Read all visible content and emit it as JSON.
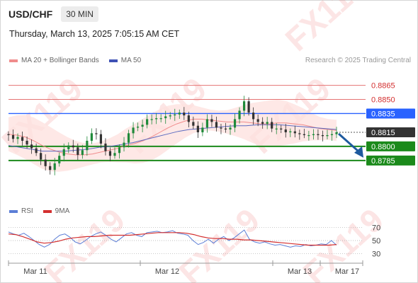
{
  "header": {
    "symbol": "USD/CHF",
    "timeframe": "30 MIN",
    "datetime": "Thursday, March 13, 2025 7:05:15 AM CET"
  },
  "legend": {
    "ma_bollinger": "MA 20 + Bollinger Bands",
    "ma50": "MA 50",
    "rsi": "RSI",
    "rsi_ma": "9MA"
  },
  "credit": "Research © 2025 Trading Central",
  "watermark": "FX119",
  "colors": {
    "resistance": "#e57373",
    "pivot": "#2962ff",
    "support": "#1b8a1b",
    "price": "#333333",
    "bull": "#1f8a3a",
    "bear": "#333333",
    "bollinger_fill": "#fde0de",
    "ma20": "#f08c8c",
    "ma50": "#5c6bc0",
    "rsi": "#5c7ed6",
    "rsi_ma": "#d32f2f",
    "arrow": "#1e5a9e"
  },
  "chart_data": [
    {
      "type": "candlestick",
      "name": "price",
      "levels": [
        {
          "value": 0.8865,
          "label": "0.8865",
          "kind": "resistance"
        },
        {
          "value": 0.885,
          "label": "0.8850",
          "kind": "resistance"
        },
        {
          "value": 0.8835,
          "label": "0.8835",
          "kind": "pivot"
        },
        {
          "value": 0.8815,
          "label": "0.8815",
          "kind": "price"
        },
        {
          "value": 0.88,
          "label": "0.8800",
          "kind": "support"
        },
        {
          "value": 0.8785,
          "label": "0.8785",
          "kind": "support"
        }
      ],
      "x_ticks": [
        "Mar 11",
        "Mar 12",
        "Mar 13",
        "Mar 17"
      ],
      "last_price": 0.8815,
      "ylim": [
        0.8745,
        0.8882
      ],
      "forecast_arrow": {
        "from": 0.8815,
        "to": 0.88
      },
      "close_path": [
        0.8812,
        0.8808,
        0.881,
        0.8806,
        0.8802,
        0.8798,
        0.8793,
        0.8786,
        0.8779,
        0.8775,
        0.8782,
        0.879,
        0.8797,
        0.8801,
        0.8799,
        0.8791,
        0.8796,
        0.8806,
        0.8814,
        0.8813,
        0.8803,
        0.8795,
        0.879,
        0.8793,
        0.8799,
        0.8804,
        0.8814,
        0.882,
        0.8821,
        0.8823,
        0.8829,
        0.8829,
        0.883,
        0.883,
        0.8832,
        0.8833,
        0.8834,
        0.8836,
        0.8833,
        0.8826,
        0.8822,
        0.8815,
        0.882,
        0.8829,
        0.8826,
        0.882,
        0.8819,
        0.8818,
        0.882,
        0.8829,
        0.8838,
        0.8848,
        0.8836,
        0.8829,
        0.8826,
        0.8824,
        0.8826,
        0.8819,
        0.8819,
        0.8818,
        0.8815,
        0.8816,
        0.8814,
        0.8813,
        0.8812,
        0.8812,
        0.8813,
        0.8812,
        0.8811,
        0.8812,
        0.8813,
        0.8815
      ],
      "ma20_path": [
        0.8813,
        0.8812,
        0.881,
        0.8806,
        0.8801,
        0.8797,
        0.8794,
        0.8792,
        0.8791,
        0.8791,
        0.8792,
        0.8794,
        0.8796,
        0.8798,
        0.8801,
        0.8803,
        0.8806,
        0.881,
        0.8815,
        0.882,
        0.8824,
        0.8827,
        0.8829,
        0.8829,
        0.8828,
        0.8827,
        0.8826,
        0.8826,
        0.8826,
        0.8825,
        0.8824,
        0.8824,
        0.8825,
        0.8825,
        0.8824,
        0.8823,
        0.8821,
        0.8819,
        0.8818,
        0.8817
      ],
      "ma50_path": [
        0.8801,
        0.8799,
        0.8797,
        0.8795,
        0.8795,
        0.8795,
        0.8796,
        0.8797,
        0.8799,
        0.88,
        0.8802,
        0.8804,
        0.8807,
        0.881,
        0.8813,
        0.8816,
        0.8818,
        0.8819,
        0.882,
        0.8821,
        0.8822,
        0.8822,
        0.8823,
        0.8823,
        0.8823,
        0.8822,
        0.8821,
        0.882,
        0.8819,
        0.8818
      ]
    },
    {
      "type": "line",
      "name": "rsi-panel",
      "y_ticks": [
        "70",
        "50",
        "30"
      ],
      "ylim": [
        20,
        80
      ],
      "rsi_path": [
        63,
        60,
        58,
        61,
        56,
        50,
        44,
        40,
        44,
        52,
        58,
        60,
        55,
        48,
        45,
        50,
        56,
        60,
        63,
        58,
        52,
        48,
        54,
        60,
        62,
        58,
        56,
        62,
        63,
        64,
        62,
        63,
        65,
        61,
        60,
        58,
        50,
        44,
        47,
        52,
        46,
        52,
        56,
        50,
        54,
        60,
        66,
        52,
        48,
        46,
        48,
        45,
        43,
        44,
        42,
        40,
        42,
        41,
        44,
        42,
        43,
        45,
        44,
        50,
        43
      ],
      "rsi_ma_path": [
        60,
        59,
        56,
        52,
        48,
        46,
        47,
        49,
        52,
        54,
        55,
        56,
        56,
        57,
        58,
        58,
        58,
        58,
        59,
        60,
        61,
        62,
        62,
        62,
        62,
        61,
        59,
        56,
        54,
        53,
        53,
        52,
        52,
        51,
        51,
        50,
        49,
        48,
        47,
        46,
        45,
        44,
        43,
        43,
        43,
        43,
        44
      ]
    }
  ]
}
